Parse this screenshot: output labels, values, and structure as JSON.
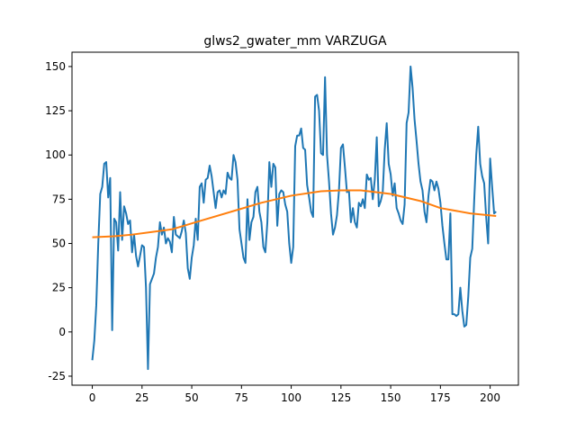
{
  "chart_data": {
    "type": "line",
    "title": "glws2_gwater_mm VARZUGA",
    "xlim": [
      -10.2,
      214.2
    ],
    "ylim": [
      -30.1,
      158.1
    ],
    "xticks": [
      0,
      25,
      50,
      75,
      100,
      125,
      150,
      175,
      200
    ],
    "yticks": [
      -25,
      0,
      25,
      50,
      75,
      100,
      125,
      150
    ],
    "grid": false,
    "series": [
      {
        "color": "#1f77b4",
        "x": [
          0,
          1,
          2,
          3,
          4,
          5,
          6,
          7,
          8,
          9,
          10,
          11,
          12,
          13,
          14,
          15,
          16,
          17,
          18,
          19,
          20,
          21,
          22,
          23,
          24,
          25,
          26,
          27,
          28,
          29,
          30,
          31,
          32,
          33,
          34,
          35,
          36,
          37,
          38,
          39,
          40,
          41,
          42,
          43,
          44,
          45,
          46,
          47,
          48,
          49,
          50,
          51,
          52,
          53,
          54,
          55,
          56,
          57,
          58,
          59,
          60,
          61,
          62,
          63,
          64,
          65,
          66,
          67,
          68,
          69,
          70,
          71,
          72,
          73,
          74,
          75,
          76,
          77,
          78,
          79,
          80,
          81,
          82,
          83,
          84,
          85,
          86,
          87,
          88,
          89,
          90,
          91,
          92,
          93,
          94,
          95,
          96,
          97,
          98,
          99,
          100,
          101,
          102,
          103,
          104,
          105,
          106,
          107,
          108,
          109,
          110,
          111,
          112,
          113,
          114,
          115,
          116,
          117,
          118,
          119,
          120,
          121,
          122,
          123,
          124,
          125,
          126,
          127,
          128,
          129,
          130,
          131,
          132,
          133,
          134,
          135,
          136,
          137,
          138,
          139,
          140,
          141,
          142,
          143,
          144,
          145,
          146,
          147,
          148,
          149,
          150,
          151,
          152,
          153,
          154,
          155,
          156,
          157,
          158,
          159,
          160,
          161,
          162,
          163,
          164,
          165,
          166,
          167,
          168,
          169,
          170,
          171,
          172,
          173,
          174,
          175,
          176,
          177,
          178,
          179,
          180,
          181,
          182,
          183,
          184,
          185,
          186,
          187,
          188,
          189,
          190,
          191,
          192,
          193,
          194,
          195,
          196,
          197,
          198,
          199,
          200,
          201,
          202,
          203
        ],
        "values": [
          -16,
          -5,
          15,
          50,
          78,
          82,
          95,
          96,
          76,
          87,
          1,
          64,
          62,
          46,
          79,
          52,
          71,
          67,
          61,
          63,
          45,
          55,
          43,
          37,
          43,
          49,
          48,
          25,
          -21,
          27,
          30,
          33,
          42,
          48,
          62,
          55,
          59,
          50,
          53,
          51,
          45,
          65,
          55,
          54,
          53,
          57,
          63,
          56,
          36,
          30,
          42,
          49,
          64,
          52,
          82,
          84,
          73,
          86,
          87,
          94,
          88,
          79,
          70,
          79,
          80,
          76,
          80,
          78,
          90,
          87,
          86,
          100,
          96,
          86,
          58,
          50,
          42,
          39,
          75,
          52,
          62,
          65,
          79,
          82,
          68,
          62,
          48,
          45,
          62,
          96,
          82,
          95,
          93,
          60,
          78,
          80,
          79,
          72,
          68,
          50,
          39,
          48,
          105,
          111,
          111,
          115,
          104,
          103,
          83,
          76,
          68,
          65,
          133,
          134,
          125,
          101,
          100,
          144,
          100,
          85,
          67,
          55,
          59,
          66,
          80,
          104,
          106,
          93,
          79,
          80,
          62,
          70,
          62,
          59,
          73,
          71,
          75,
          70,
          89,
          86,
          87,
          75,
          86,
          110,
          71,
          74,
          79,
          103,
          118,
          95,
          89,
          77,
          84,
          70,
          67,
          63,
          61,
          72,
          118,
          124,
          150,
          138,
          120,
          108,
          95,
          85,
          80,
          68,
          62,
          77,
          86,
          85,
          80,
          85,
          81,
          73,
          60,
          50,
          41,
          41,
          67,
          10,
          10,
          9,
          10,
          25,
          12,
          3,
          4,
          20,
          42,
          47,
          75,
          100,
          116,
          95,
          88,
          84,
          65,
          50,
          98,
          82,
          67,
          68
        ]
      },
      {
        "color": "#ff7f0e",
        "x": [
          0,
          10,
          20,
          30,
          40,
          55,
          70,
          85,
          100,
          115,
          125,
          135,
          150,
          165,
          175,
          190,
          203
        ],
        "values": [
          53.5,
          54,
          55,
          56.5,
          58,
          63,
          68,
          73,
          77,
          79.5,
          80,
          80,
          78,
          74,
          70,
          67,
          65.5
        ]
      }
    ]
  }
}
